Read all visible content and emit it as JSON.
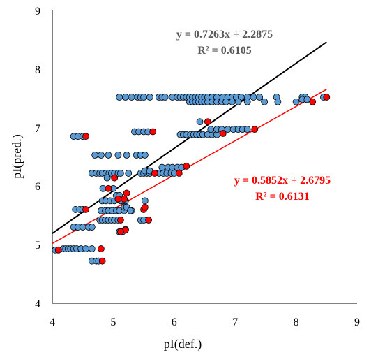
{
  "chart_data": {
    "type": "scatter",
    "title": "",
    "xlabel": "pI(def.)",
    "ylabel": "pI(pred.)",
    "xlim": [
      4,
      9
    ],
    "ylim": [
      4,
      9
    ],
    "xticks": [
      "4",
      "5",
      "6",
      "7",
      "8",
      "9"
    ],
    "yticks": [
      "4",
      "5",
      "6",
      "7",
      "8",
      "9"
    ],
    "grid": false,
    "series": [
      {
        "color": "#5b9bd5",
        "points": [
          [
            4.05,
            4.91
          ],
          [
            4.18,
            4.93
          ],
          [
            4.22,
            4.93
          ],
          [
            4.26,
            4.93
          ],
          [
            4.3,
            4.93
          ],
          [
            4.35,
            4.93
          ],
          [
            4.4,
            4.93
          ],
          [
            4.47,
            4.93
          ],
          [
            4.55,
            4.93
          ],
          [
            4.65,
            4.93
          ],
          [
            4.65,
            4.72
          ],
          [
            4.72,
            4.72
          ],
          [
            4.76,
            4.72
          ],
          [
            4.35,
            5.3
          ],
          [
            4.42,
            5.3
          ],
          [
            4.5,
            5.3
          ],
          [
            4.6,
            5.3
          ],
          [
            4.65,
            5.3
          ],
          [
            4.38,
            5.6
          ],
          [
            4.45,
            5.6
          ],
          [
            4.5,
            5.6
          ],
          [
            4.78,
            5.42
          ],
          [
            4.82,
            5.42
          ],
          [
            4.87,
            5.42
          ],
          [
            4.92,
            5.42
          ],
          [
            4.97,
            5.42
          ],
          [
            5.02,
            5.42
          ],
          [
            5.08,
            5.42
          ],
          [
            5.45,
            5.42
          ],
          [
            5.5,
            5.42
          ],
          [
            4.8,
            5.58
          ],
          [
            4.87,
            5.58
          ],
          [
            4.92,
            5.58
          ],
          [
            4.98,
            5.58
          ],
          [
            5.05,
            5.58
          ],
          [
            5.1,
            5.58
          ],
          [
            5.18,
            5.58
          ],
          [
            5.3,
            5.58
          ],
          [
            4.82,
            5.75
          ],
          [
            4.88,
            5.75
          ],
          [
            4.95,
            5.75
          ],
          [
            5.02,
            5.75
          ],
          [
            5.12,
            5.75
          ],
          [
            5.2,
            5.75
          ],
          [
            5.52,
            5.75
          ],
          [
            4.83,
            5.96
          ],
          [
            5.0,
            5.96
          ],
          [
            5.05,
            5.84
          ],
          [
            5.1,
            5.84
          ],
          [
            5.18,
            5.64
          ],
          [
            5.22,
            5.64
          ],
          [
            5.28,
            5.58
          ],
          [
            5.1,
            5.22
          ],
          [
            5.15,
            5.22
          ],
          [
            5.2,
            5.26
          ],
          [
            4.65,
            6.22
          ],
          [
            4.72,
            6.22
          ],
          [
            4.78,
            6.22
          ],
          [
            4.82,
            6.22
          ],
          [
            4.88,
            6.22
          ],
          [
            4.93,
            6.22
          ],
          [
            4.97,
            6.22
          ],
          [
            5.02,
            6.22
          ],
          [
            5.08,
            6.22
          ],
          [
            5.12,
            6.22
          ],
          [
            5.25,
            6.22
          ],
          [
            5.45,
            6.22
          ],
          [
            5.5,
            6.22
          ],
          [
            5.55,
            6.22
          ],
          [
            5.6,
            6.22
          ],
          [
            5.75,
            6.22
          ],
          [
            5.82,
            6.22
          ],
          [
            5.88,
            6.22
          ],
          [
            5.95,
            6.22
          ],
          [
            6.0,
            6.22
          ],
          [
            4.9,
            6.14
          ],
          [
            5.52,
            6.26
          ],
          [
            5.6,
            6.26
          ],
          [
            5.8,
            6.32
          ],
          [
            5.9,
            6.32
          ],
          [
            5.97,
            6.32
          ],
          [
            6.05,
            6.32
          ],
          [
            6.12,
            6.32
          ],
          [
            4.7,
            6.53
          ],
          [
            4.8,
            6.53
          ],
          [
            4.92,
            6.53
          ],
          [
            5.08,
            6.53
          ],
          [
            5.22,
            6.53
          ],
          [
            5.38,
            6.53
          ],
          [
            5.45,
            6.53
          ],
          [
            5.52,
            6.53
          ],
          [
            4.35,
            6.85
          ],
          [
            4.42,
            6.85
          ],
          [
            4.5,
            6.85
          ],
          [
            5.35,
            6.93
          ],
          [
            5.42,
            6.93
          ],
          [
            5.5,
            6.93
          ],
          [
            5.57,
            6.93
          ],
          [
            6.1,
            6.88
          ],
          [
            6.15,
            6.88
          ],
          [
            6.2,
            6.88
          ],
          [
            6.27,
            6.88
          ],
          [
            6.32,
            6.88
          ],
          [
            6.37,
            6.88
          ],
          [
            6.42,
            6.88
          ],
          [
            6.47,
            6.88
          ],
          [
            6.55,
            6.88
          ],
          [
            6.62,
            6.88
          ],
          [
            6.7,
            6.88
          ],
          [
            6.42,
            7.1
          ],
          [
            6.6,
            6.97
          ],
          [
            6.7,
            6.97
          ],
          [
            6.78,
            6.97
          ],
          [
            6.88,
            6.97
          ],
          [
            6.97,
            6.97
          ],
          [
            7.05,
            6.97
          ],
          [
            7.12,
            6.97
          ],
          [
            7.2,
            6.97
          ],
          [
            5.1,
            7.52
          ],
          [
            5.2,
            7.52
          ],
          [
            5.3,
            7.52
          ],
          [
            5.4,
            7.52
          ],
          [
            5.45,
            7.52
          ],
          [
            5.5,
            7.52
          ],
          [
            5.6,
            7.52
          ],
          [
            5.75,
            7.52
          ],
          [
            5.8,
            7.52
          ],
          [
            5.85,
            7.52
          ],
          [
            5.97,
            7.52
          ],
          [
            6.05,
            7.52
          ],
          [
            6.1,
            7.52
          ],
          [
            6.15,
            7.52
          ],
          [
            6.2,
            7.52
          ],
          [
            6.25,
            7.52
          ],
          [
            6.3,
            7.52
          ],
          [
            6.35,
            7.52
          ],
          [
            6.4,
            7.52
          ],
          [
            6.45,
            7.52
          ],
          [
            6.5,
            7.52
          ],
          [
            6.55,
            7.52
          ],
          [
            6.62,
            7.52
          ],
          [
            6.7,
            7.52
          ],
          [
            6.8,
            7.52
          ],
          [
            6.88,
            7.52
          ],
          [
            6.95,
            7.52
          ],
          [
            7.02,
            7.52
          ],
          [
            7.1,
            7.52
          ],
          [
            7.2,
            7.52
          ],
          [
            7.3,
            7.52
          ],
          [
            7.4,
            7.52
          ],
          [
            7.68,
            7.52
          ],
          [
            8.1,
            7.52
          ],
          [
            8.15,
            7.52
          ],
          [
            8.45,
            7.52
          ],
          [
            6.25,
            7.44
          ],
          [
            6.3,
            7.44
          ],
          [
            6.35,
            7.44
          ],
          [
            6.4,
            7.44
          ],
          [
            6.45,
            7.44
          ],
          [
            6.5,
            7.44
          ],
          [
            6.55,
            7.44
          ],
          [
            6.62,
            7.44
          ],
          [
            6.7,
            7.44
          ],
          [
            6.78,
            7.44
          ],
          [
            6.85,
            7.44
          ],
          [
            6.95,
            7.44
          ],
          [
            7.05,
            7.44
          ],
          [
            7.2,
            7.44
          ],
          [
            7.48,
            7.44
          ],
          [
            7.7,
            7.44
          ],
          [
            8.0,
            7.44
          ],
          [
            8.1,
            7.48
          ],
          [
            8.18,
            7.48
          ]
        ]
      },
      {
        "color": "#ff0000",
        "points": [
          [
            4.1,
            4.91
          ],
          [
            4.8,
            4.93
          ],
          [
            4.82,
            4.72
          ],
          [
            4.55,
            5.6
          ],
          [
            4.55,
            6.85
          ],
          [
            4.92,
            5.96
          ],
          [
            5.02,
            6.14
          ],
          [
            5.08,
            5.78
          ],
          [
            5.18,
            5.78
          ],
          [
            5.12,
            5.42
          ],
          [
            5.22,
            5.88
          ],
          [
            5.2,
            5.25
          ],
          [
            5.12,
            5.22
          ],
          [
            5.5,
            5.6
          ],
          [
            5.52,
            5.64
          ],
          [
            5.58,
            5.42
          ],
          [
            5.65,
            6.93
          ],
          [
            5.68,
            6.22
          ],
          [
            6.08,
            6.22
          ],
          [
            6.2,
            6.34
          ],
          [
            6.55,
            7.1
          ],
          [
            6.8,
            6.9
          ],
          [
            7.32,
            6.97
          ],
          [
            8.27,
            7.44
          ],
          [
            8.5,
            7.52
          ]
        ]
      }
    ],
    "fits": [
      {
        "color": "#000000",
        "slope": 0.7263,
        "intercept": 2.2875,
        "x_range": [
          4,
          8.5
        ],
        "equation": "y = 0.7263x + 2.2875",
        "r2": "R² = 0.6105",
        "label_color": "#595959"
      },
      {
        "color": "#ff0000",
        "slope": 0.5852,
        "intercept": 2.6795,
        "x_range": [
          4,
          8.5
        ],
        "equation": "y = 0.5852x + 2.6795",
        "r2": "R² = 0.6131",
        "label_color": "#ff0000"
      }
    ]
  }
}
